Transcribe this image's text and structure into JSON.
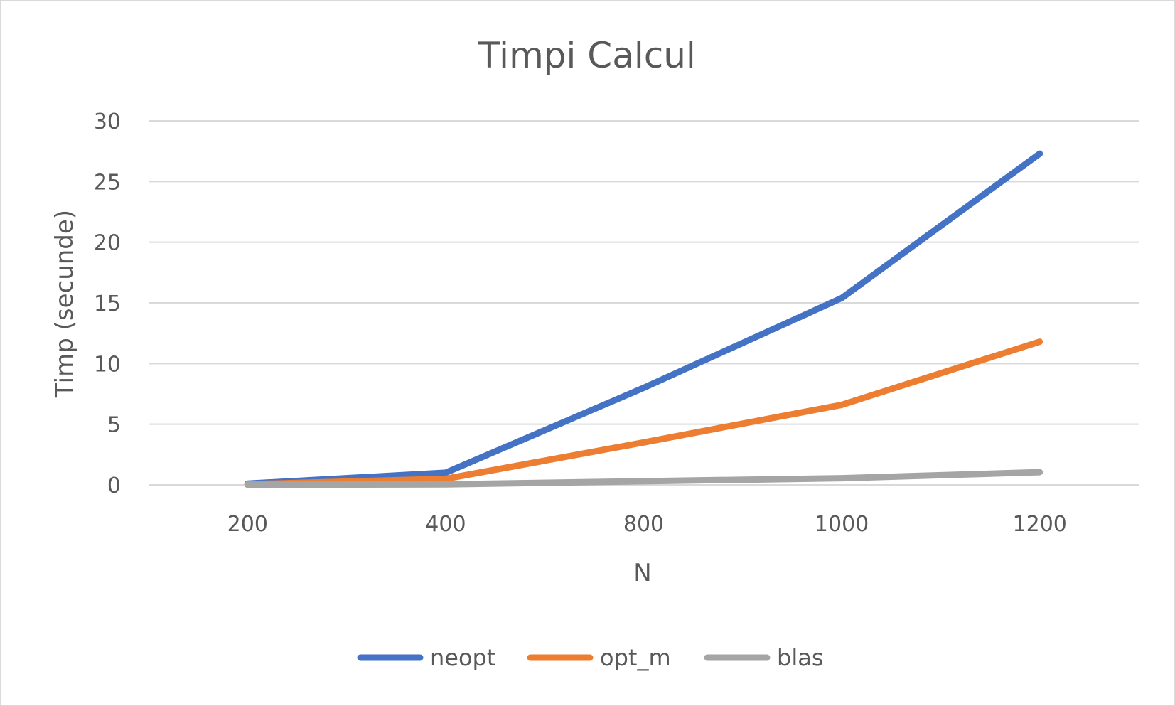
{
  "chart_data": {
    "type": "line",
    "title": "Timpi Calcul",
    "xlabel": "N",
    "ylabel": "Timp (secunde)",
    "categories": [
      "200",
      "400",
      "800",
      "1000",
      "1200"
    ],
    "ylim": [
      0,
      30
    ],
    "yticks": [
      0,
      5,
      10,
      15,
      20,
      25,
      30
    ],
    "grid": true,
    "legend_position": "bottom",
    "series": [
      {
        "name": "neopt",
        "color": "#4472C4",
        "values": [
          0.1,
          1.0,
          8.0,
          15.4,
          27.3
        ]
      },
      {
        "name": "opt_m",
        "color": "#ED7D31",
        "values": [
          0.05,
          0.5,
          3.5,
          6.6,
          11.8
        ]
      },
      {
        "name": "blas",
        "color": "#A5A5A5",
        "values": [
          0.01,
          0.04,
          0.3,
          0.55,
          1.05
        ]
      }
    ]
  }
}
